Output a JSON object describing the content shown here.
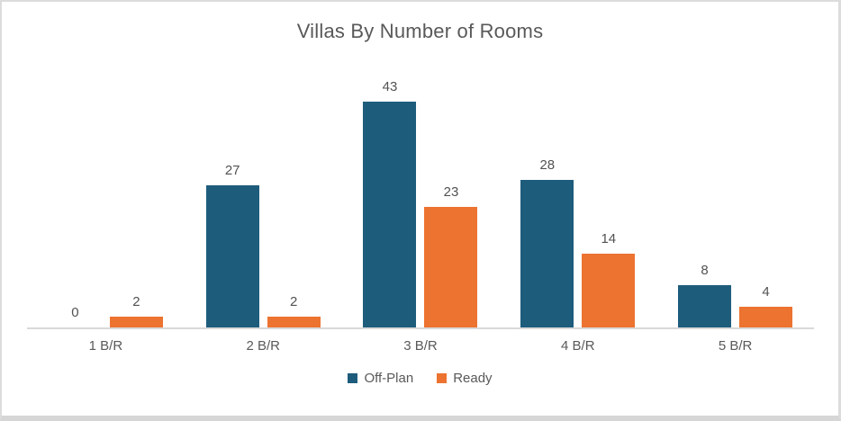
{
  "chart_data": {
    "type": "bar",
    "title": "Villas By Number of Rooms",
    "categories": [
      "1 B/R",
      "2 B/R",
      "3 B/R",
      "4 B/R",
      "5 B/R"
    ],
    "series": [
      {
        "name": "Off-Plan",
        "color": "#1E5C7C",
        "values": [
          0,
          27,
          43,
          28,
          8
        ]
      },
      {
        "name": "Ready",
        "color": "#EC7330",
        "values": [
          2,
          2,
          23,
          14,
          4
        ]
      }
    ],
    "xlabel": "",
    "ylabel": "",
    "ylim": [
      0,
      45
    ],
    "grid": false,
    "legend_position": "bottom",
    "data_labels": true
  },
  "colors": {
    "title_text": "#595959",
    "data_label_text": "#525252",
    "category_label_text": "#595959",
    "axis_line": "#d9d9d9",
    "frame_border": "#dcdcdc",
    "background": "#ffffff"
  }
}
